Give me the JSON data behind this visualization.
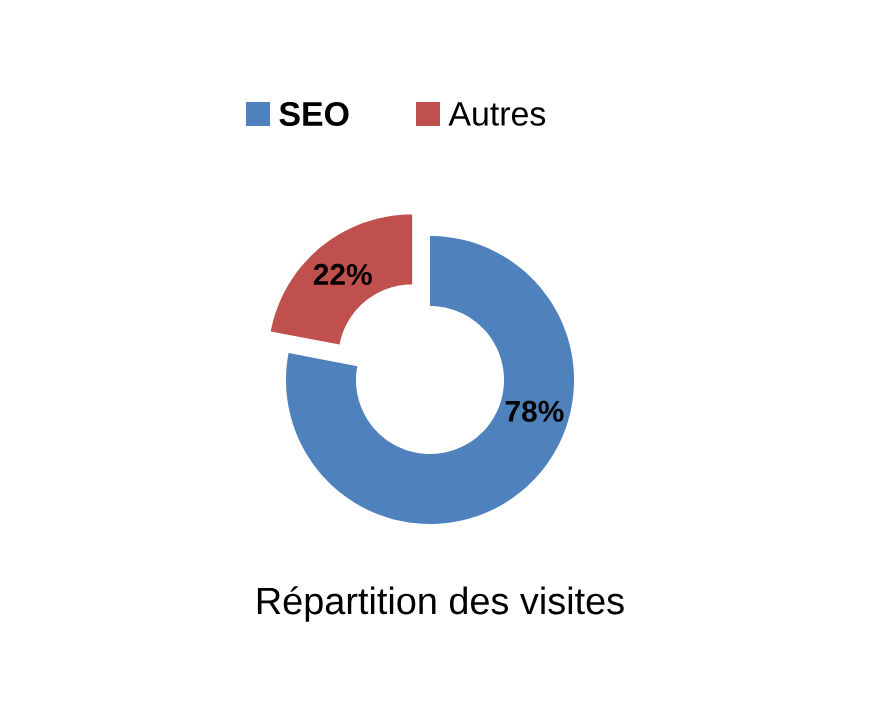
{
  "chart_data": {
    "type": "donut",
    "title": "Répartition des visites",
    "categories": [
      "SEO",
      "Autres"
    ],
    "values": [
      78,
      22
    ],
    "value_labels": [
      "78%",
      "22%"
    ],
    "colors": [
      "#4f81bd",
      "#c0504d"
    ],
    "legend": "top"
  }
}
